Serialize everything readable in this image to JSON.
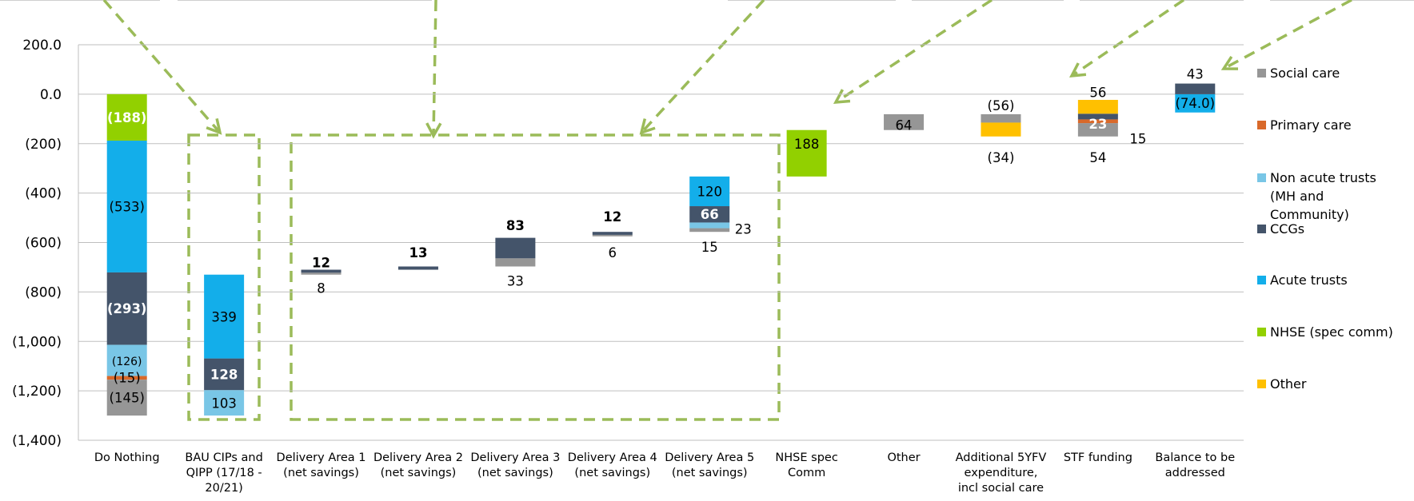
{
  "chart_data": {
    "type": "bar",
    "subtype": "waterfall-stacked",
    "title": "",
    "xlabel": "",
    "ylabel": "",
    "ylim": [
      -1400,
      200
    ],
    "y_ticks": [
      200,
      0,
      -200,
      -400,
      -600,
      -800,
      -1000,
      -1200,
      -1400
    ],
    "y_tick_labels": [
      "200.0",
      "0.0",
      "(200)",
      "(400)",
      "(600)",
      "(800)",
      "(1,000)",
      "(1,200)",
      "(1,400)"
    ],
    "grid": true,
    "legend_position": "right",
    "categories": [
      {
        "lines": [
          "Do Nothing"
        ]
      },
      {
        "lines": [
          "BAU CIPs and",
          "QIPP (17/18 -",
          "20/21)"
        ]
      },
      {
        "lines": [
          "Delivery Area 1",
          "(net savings)"
        ]
      },
      {
        "lines": [
          "Delivery Area 2",
          "(net savings)"
        ]
      },
      {
        "lines": [
          "Delivery Area 3",
          "(net savings)"
        ]
      },
      {
        "lines": [
          "Delivery Area 4",
          "(net savings)"
        ]
      },
      {
        "lines": [
          "Delivery Area 5",
          "(net savings)"
        ]
      },
      {
        "lines": [
          "NHSE spec",
          "Comm"
        ]
      },
      {
        "lines": [
          "Other"
        ]
      },
      {
        "lines": [
          "Additional 5YFV",
          "expenditure,",
          "incl social care"
        ]
      },
      {
        "lines": [
          "STF funding"
        ]
      },
      {
        "lines": [
          "Balance to be",
          "addressed"
        ]
      }
    ],
    "series_colors": {
      "Social care": "#969696",
      "Primary care": "#D9692A",
      "Non acute trusts (MH and Community)": "#79C6E6",
      "CCGs": "#44546A",
      "Acute trusts": "#13AEEA",
      "NHSE (spec comm)": "#92D000",
      "Other": "#FFC000"
    },
    "legend": [
      {
        "series": "Social care",
        "lines": [
          "Social care"
        ]
      },
      {
        "series": "Primary care",
        "lines": [
          "Primary care"
        ]
      },
      {
        "series": "Non acute trusts (MH and Community)",
        "lines": [
          "Non acute trusts",
          "(MH and",
          "Community)"
        ]
      },
      {
        "series": "CCGs",
        "lines": [
          "CCGs"
        ]
      },
      {
        "series": "Acute trusts",
        "lines": [
          "Acute trusts"
        ]
      },
      {
        "series": "NHSE (spec comm)",
        "lines": [
          "NHSE (spec comm)"
        ]
      },
      {
        "series": "Other",
        "lines": [
          "Other"
        ]
      }
    ],
    "segments": [
      {
        "cat": 0,
        "series": "NHSE (spec comm)",
        "from": 0,
        "to": -188
      },
      {
        "cat": 0,
        "series": "Acute trusts",
        "from": -188,
        "to": -721
      },
      {
        "cat": 0,
        "series": "CCGs",
        "from": -721,
        "to": -1014
      },
      {
        "cat": 0,
        "series": "Non acute trusts (MH and Community)",
        "from": -1014,
        "to": -1140
      },
      {
        "cat": 0,
        "series": "Primary care",
        "from": -1140,
        "to": -1155
      },
      {
        "cat": 0,
        "series": "Social care",
        "from": -1155,
        "to": -1300
      },
      {
        "cat": 1,
        "series": "Non acute trusts (MH and Community)",
        "from": -1300,
        "to": -1197
      },
      {
        "cat": 1,
        "series": "CCGs",
        "from": -1197,
        "to": -1069
      },
      {
        "cat": 1,
        "series": "Acute trusts",
        "from": -1069,
        "to": -730
      },
      {
        "cat": 2,
        "series": "Social care",
        "from": -730,
        "to": -722
      },
      {
        "cat": 2,
        "series": "CCGs",
        "from": -722,
        "to": -710
      },
      {
        "cat": 3,
        "series": "CCGs",
        "from": -710,
        "to": -697
      },
      {
        "cat": 4,
        "series": "Social care",
        "from": -697,
        "to": -664
      },
      {
        "cat": 4,
        "series": "CCGs",
        "from": -664,
        "to": -581
      },
      {
        "cat": 5,
        "series": "Social care",
        "from": -575,
        "to": -569
      },
      {
        "cat": 5,
        "series": "CCGs",
        "from": -569,
        "to": -557
      },
      {
        "cat": 6,
        "series": "Social care",
        "from": -557,
        "to": -542
      },
      {
        "cat": 6,
        "series": "Non acute trusts (MH and Community)",
        "from": -542,
        "to": -519
      },
      {
        "cat": 6,
        "series": "CCGs",
        "from": -519,
        "to": -453
      },
      {
        "cat": 6,
        "series": "Acute trusts",
        "from": -453,
        "to": -333
      },
      {
        "cat": 7,
        "series": "NHSE (spec comm)",
        "from": -333,
        "to": -145
      },
      {
        "cat": 8,
        "series": "Social care",
        "from": -145,
        "to": -81
      },
      {
        "cat": 9,
        "series": "Social care",
        "from": -81,
        "to": -115
      },
      {
        "cat": 9,
        "series": "Other",
        "from": -115,
        "to": -171
      },
      {
        "cat": 10,
        "series": "Social care",
        "from": -171,
        "to": -117
      },
      {
        "cat": 10,
        "series": "Primary care",
        "from": -117,
        "to": -102
      },
      {
        "cat": 10,
        "series": "CCGs",
        "from": -102,
        "to": -79
      },
      {
        "cat": 10,
        "series": "Other",
        "from": -79,
        "to": -23
      },
      {
        "cat": 11,
        "series": "Acute trusts",
        "from": -74,
        "to": 0
      },
      {
        "cat": 11,
        "series": "CCGs",
        "from": 0,
        "to": 43
      }
    ],
    "data_labels": [
      {
        "text": "(188)",
        "cat": 0,
        "y": -94,
        "style": "white"
      },
      {
        "text": "(533)",
        "cat": 0,
        "y": -455,
        "style": "normal"
      },
      {
        "text": "(293)",
        "cat": 0,
        "y": -867,
        "style": "white"
      },
      {
        "text": "(126)",
        "cat": 0,
        "y": -1077,
        "style": "small"
      },
      {
        "text": "(15)",
        "cat": 0,
        "y": -1147,
        "style": "normal"
      },
      {
        "text": "(145)",
        "cat": 0,
        "y": -1227,
        "style": "normal"
      },
      {
        "text": "339",
        "cat": 1,
        "y": -900,
        "style": "normal"
      },
      {
        "text": "128",
        "cat": 1,
        "y": -1133,
        "style": "white"
      },
      {
        "text": "103",
        "cat": 1,
        "y": -1249,
        "style": "normal"
      },
      {
        "text": "12",
        "cat": 2,
        "y": -680,
        "style": "bold"
      },
      {
        "text": "8",
        "cat": 2,
        "y": -785,
        "style": "normal"
      },
      {
        "text": "13",
        "cat": 3,
        "y": -640,
        "style": "bold"
      },
      {
        "text": "83",
        "cat": 4,
        "y": -530,
        "style": "bold"
      },
      {
        "text": "33",
        "cat": 4,
        "y": -755,
        "style": "normal"
      },
      {
        "text": "12",
        "cat": 5,
        "y": -495,
        "style": "bold"
      },
      {
        "text": "6",
        "cat": 5,
        "y": -640,
        "style": "normal"
      },
      {
        "text": "120",
        "cat": 6,
        "y": -393,
        "style": "normal"
      },
      {
        "text": "66",
        "cat": 6,
        "y": -486,
        "style": "white"
      },
      {
        "text": "23",
        "cat": 6,
        "y": -545,
        "style": "normal",
        "dx": 42
      },
      {
        "text": "15",
        "cat": 6,
        "y": -618,
        "style": "normal"
      },
      {
        "text": "188",
        "cat": 7,
        "y": -200,
        "style": "normal"
      },
      {
        "text": "64",
        "cat": 8,
        "y": -125,
        "style": "normal"
      },
      {
        "text": "(56)",
        "cat": 9,
        "y": -45,
        "style": "normal"
      },
      {
        "text": "(34)",
        "cat": 9,
        "y": -255,
        "style": "normal"
      },
      {
        "text": "56",
        "cat": 10,
        "y": 8,
        "style": "normal"
      },
      {
        "text": "23",
        "cat": 10,
        "y": -120,
        "style": "white"
      },
      {
        "text": "15",
        "cat": 10,
        "y": -180,
        "style": "normal",
        "dx": 50
      },
      {
        "text": "54",
        "cat": 10,
        "y": -255,
        "style": "normal"
      },
      {
        "text": "43",
        "cat": 11,
        "y": 82,
        "style": "normal"
      },
      {
        "text": "(74.0)",
        "cat": 11,
        "y": -36,
        "style": "normal"
      }
    ]
  }
}
